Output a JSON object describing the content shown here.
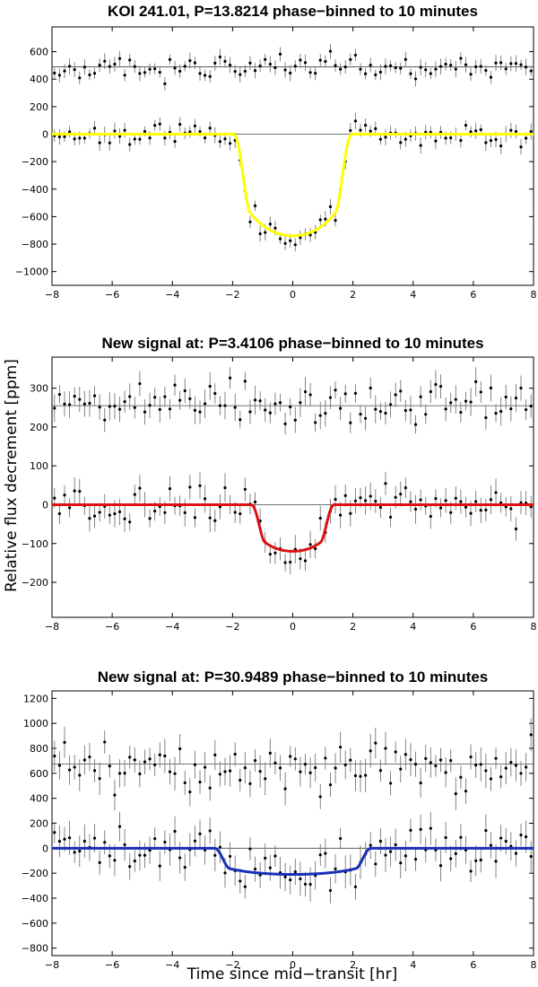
{
  "chart_data": [
    {
      "type": "scatter",
      "title": "KOI 241.01, P=13.8214 phase−binned to 10 minutes",
      "xlim": [
        -8,
        8
      ],
      "ylim": [
        -1100,
        780
      ],
      "xticks": [
        -8,
        -6,
        -4,
        -2,
        0,
        2,
        4,
        6,
        8
      ],
      "yticks": [
        -1000,
        -800,
        -600,
        -400,
        -200,
        0,
        200,
        400,
        600
      ],
      "grid": false,
      "reference_lines": [
        0,
        490
      ],
      "model": {
        "name": "transit model",
        "color": "#ffff00",
        "depth": 740,
        "half_duration": 1.97,
        "ingress": 0.55,
        "limb": 0.75,
        "x": [
          -8,
          -2,
          -1.9,
          -1.7,
          -1.5,
          -1.3,
          -1.1,
          -0.9,
          -0.6,
          -0.3,
          0,
          0.3,
          0.6,
          0.9,
          1.1,
          1.3,
          1.5,
          1.7,
          1.9,
          2,
          8
        ]
      },
      "series": [
        {
          "role": "binned_data",
          "count": 96,
          "seed": 11,
          "scatter": 40,
          "errorbar": 48,
          "offset": 0
        },
        {
          "role": "residuals",
          "count": 96,
          "seed": 12,
          "scatter": 40,
          "errorbar": 48,
          "offset": 490
        }
      ]
    },
    {
      "type": "scatter",
      "title": "New signal at: P=3.4106 phase−binned to 10 minutes",
      "xlim": [
        -8,
        8
      ],
      "ylim": [
        -290,
        380
      ],
      "xticks": [
        -8,
        -6,
        -4,
        -2,
        0,
        2,
        4,
        6,
        8
      ],
      "yticks": [
        -200,
        -100,
        0,
        100,
        200,
        300
      ],
      "grid": false,
      "reference_lines": [
        0,
        255
      ],
      "model": {
        "name": "transit model",
        "color": "#dd1111",
        "depth": 120,
        "half_duration": 1.38,
        "ingress": 0.45,
        "limb": 0.75
      },
      "series": [
        {
          "role": "binned_data",
          "count": 96,
          "seed": 21,
          "scatter": 25,
          "errorbar": 30,
          "offset": 0
        },
        {
          "role": "residuals",
          "count": 96,
          "seed": 22,
          "scatter": 25,
          "errorbar": 30,
          "offset": 255
        }
      ]
    },
    {
      "type": "scatter",
      "title": "New signal at: P=30.9489 phase−binned to 10 minutes",
      "xlim": [
        -8,
        8
      ],
      "ylim": [
        -860,
        1260
      ],
      "xticks": [
        -8,
        -6,
        -4,
        -2,
        0,
        2,
        4,
        6,
        8
      ],
      "yticks": [
        -800,
        -600,
        -400,
        -200,
        0,
        200,
        400,
        600,
        800,
        1000,
        1200
      ],
      "grid": false,
      "reference_lines": [
        0,
        675
      ],
      "model": {
        "name": "transit model",
        "color": "#1a2fb8",
        "depth": 210,
        "half_duration": 2.6,
        "ingress": 0.5,
        "limb": 0.55
      },
      "series": [
        {
          "role": "binned_data",
          "count": 96,
          "seed": 31,
          "scatter": 90,
          "errorbar": 110,
          "offset": 0
        },
        {
          "role": "residuals",
          "count": 96,
          "seed": 32,
          "scatter": 90,
          "errorbar": 110,
          "offset": 675
        }
      ]
    }
  ],
  "shared_labels": {
    "ylabel": "Relative flux decrement [ppm]",
    "xlabel": "Time since mid−transit [hr]"
  }
}
